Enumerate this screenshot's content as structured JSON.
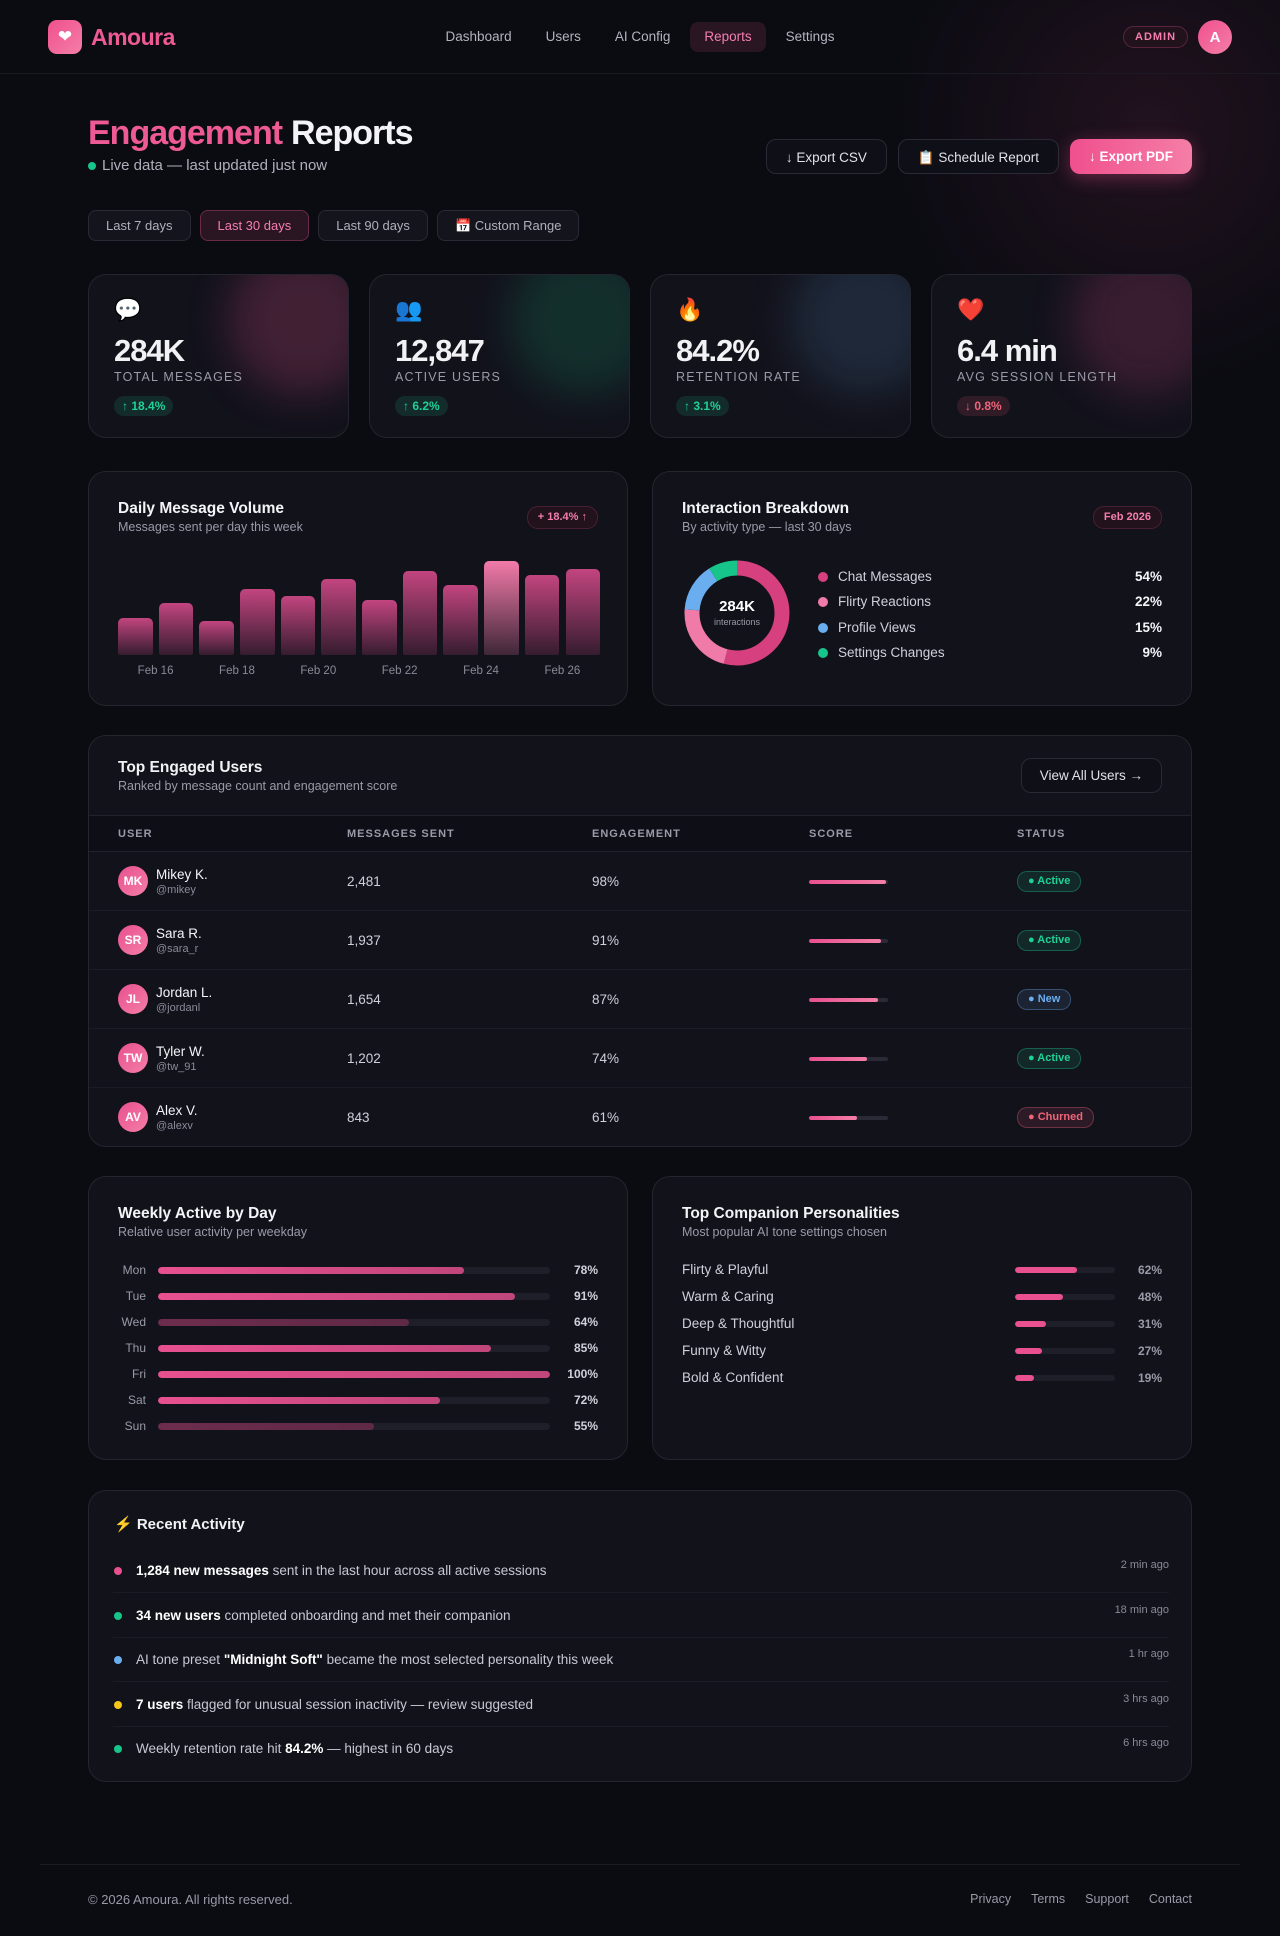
{
  "nav": {
    "logo_icon": "❤",
    "brand": "Amoura",
    "links": [
      "Dashboard",
      "Users",
      "AI Config",
      "Reports",
      "Settings"
    ],
    "active_link": 3,
    "badge": "ADMIN",
    "avatar": "A"
  },
  "header": {
    "title_accent": "Engagement",
    "title_rest": "Reports",
    "subtitle": "Live data — last updated just now",
    "buttons": [
      "↓ Export CSV",
      "📋 Schedule Report",
      "↓ Export PDF"
    ]
  },
  "filters": {
    "options": [
      "Last 7 days",
      "Last 30 days",
      "Last 90 days",
      "📅 Custom Range"
    ],
    "active": 1
  },
  "stats": [
    {
      "icon": "💬",
      "value": "284K",
      "label": "TOTAL MESSAGES",
      "change": "↑ 18.4%",
      "change_color": "#1fd195"
    },
    {
      "icon": "👥",
      "value": "12,847",
      "label": "ACTIVE USERS",
      "change": "↑ 6.2%",
      "change_color": "#1fd195"
    },
    {
      "icon": "🔥",
      "value": "84.2%",
      "label": "RETENTION RATE",
      "change": "↑ 3.1%",
      "change_color": "#1fd195"
    },
    {
      "icon": "❤️",
      "value": "6.4 min",
      "label": "AVG SESSION LENGTH",
      "change": "↓ 0.8%",
      "change_color": "#f0647a"
    }
  ],
  "daily_volume": {
    "type": "bar",
    "title": "Daily Message Volume",
    "subtitle": "Messages sent per day this week",
    "badge": "+ 18.4% ↑",
    "values": [
      31,
      43,
      28,
      55,
      49,
      63,
      46,
      70,
      58,
      78,
      67,
      72
    ],
    "ylim": [
      0,
      80
    ],
    "color": "#c2457f",
    "highlight": 9,
    "highlight_color": "#f27aa9",
    "x_labels": [
      "Feb 16",
      "Feb 18",
      "Feb 20",
      "Feb 22",
      "Feb 24",
      "Feb 26"
    ]
  },
  "interaction_breakdown": {
    "type": "pie",
    "title": "Interaction Breakdown",
    "subtitle": "By activity type — last 30 days",
    "badge": "Feb 2026",
    "center_value": "284K",
    "center_label": "interactions",
    "categories": [
      "Chat Messages",
      "Flirty Reactions",
      "Profile Views",
      "Settings Changes"
    ],
    "values": [
      54,
      22,
      15,
      9
    ],
    "value_labels": [
      "54%",
      "22%",
      "15%",
      "9%"
    ],
    "colors": [
      "#d6407f",
      "#f07aa8",
      "#6aaef0",
      "#17c48a"
    ]
  },
  "top_users": {
    "title": "Top Engaged Users",
    "subtitle": "Ranked by message count and engagement score",
    "button": "View All Users →",
    "columns": [
      "USER",
      "MESSAGES SENT",
      "ENGAGEMENT",
      "SCORE",
      "STATUS"
    ],
    "rows": [
      {
        "initials": "MK",
        "name": "Mikey K.",
        "handle": "@mikey",
        "messages": "2,481",
        "engagement": {
          "value": 98,
          "label": "98%"
        },
        "status": "Active",
        "status_color": "#1fd195"
      },
      {
        "initials": "SR",
        "name": "Sara R.",
        "handle": "@sara_r",
        "messages": "1,937",
        "engagement": {
          "value": 91,
          "label": "91%"
        },
        "status": "Active",
        "status_color": "#1fd195"
      },
      {
        "initials": "JL",
        "name": "Jordan L.",
        "handle": "@jordanl",
        "messages": "1,654",
        "engagement": {
          "value": 87,
          "label": "87%"
        },
        "status": "New",
        "status_color": "#6aaef0"
      },
      {
        "initials": "TW",
        "name": "Tyler W.",
        "handle": "@tw_91",
        "messages": "1,202",
        "engagement": {
          "value": 74,
          "label": "74%"
        },
        "status": "Active",
        "status_color": "#1fd195"
      },
      {
        "initials": "AV",
        "name": "Alex V.",
        "handle": "@alexv",
        "messages": "843",
        "engagement": {
          "value": 61,
          "label": "61%"
        },
        "status": "Churned",
        "status_color": "#f0647a"
      }
    ]
  },
  "weekly_active": {
    "type": "bar",
    "title": "Weekly Active by Day",
    "subtitle": "Relative user activity per weekday",
    "categories": [
      "Mon",
      "Tue",
      "Wed",
      "Thu",
      "Fri",
      "Sat",
      "Sun"
    ],
    "values": [
      78,
      91,
      64,
      85,
      100,
      72,
      55
    ],
    "value_labels": [
      "78%",
      "91%",
      "64%",
      "85%",
      "100%",
      "72%",
      "55%"
    ],
    "colors": [
      "#e8508f",
      "#e8508f",
      "#6e2c4d",
      "#e8508f",
      "#e8508f",
      "#e8508f",
      "#6e2c4d"
    ],
    "xlim": [
      0,
      100
    ]
  },
  "personalities": {
    "type": "bar",
    "title": "Top Companion Personalities",
    "subtitle": "Most popular AI tone settings chosen",
    "categories": [
      "Flirty & Playful",
      "Warm & Caring",
      "Deep & Thoughtful",
      "Funny & Witty",
      "Bold & Confident"
    ],
    "values": [
      62,
      48,
      31,
      27,
      19
    ],
    "value_labels": [
      "62%",
      "48%",
      "31%",
      "27%",
      "19%"
    ],
    "color": "#e8508f",
    "xlim": [
      0,
      100
    ]
  },
  "activity": {
    "title": "⚡ Recent Activity",
    "items": [
      {
        "color": "#e8508f",
        "parts": [
          {
            "bold": "1,284 new messages"
          },
          {
            "text": " sent in the last hour across all active sessions"
          }
        ],
        "time": "2 min ago"
      },
      {
        "color": "#17c48a",
        "parts": [
          {
            "bold": "34 new users"
          },
          {
            "text": " completed onboarding and met their companion"
          }
        ],
        "time": "18 min ago"
      },
      {
        "color": "#6aaef0",
        "parts": [
          {
            "text": "AI tone preset "
          },
          {
            "bold": "\"Midnight Soft\""
          },
          {
            "text": " became the most selected personality this week"
          }
        ],
        "time": "1 hr ago"
      },
      {
        "color": "#f5c518",
        "parts": [
          {
            "bold": "7 users"
          },
          {
            "text": " flagged for unusual session inactivity — review suggested"
          }
        ],
        "time": "3 hrs ago"
      },
      {
        "color": "#17c48a",
        "parts": [
          {
            "text": "Weekly retention rate hit "
          },
          {
            "bold": "84.2%"
          },
          {
            "text": " — highest in 60 days"
          }
        ],
        "time": "6 hrs ago"
      }
    ]
  },
  "footer": {
    "copyright": "© 2026 Amoura. All rights reserved.",
    "links": [
      "Privacy",
      "Terms",
      "Support",
      "Contact"
    ]
  }
}
